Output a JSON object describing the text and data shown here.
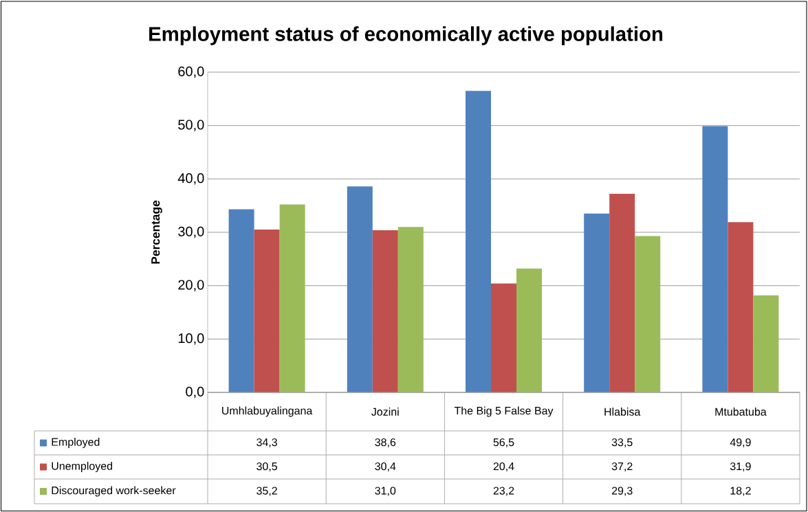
{
  "chart_data": {
    "type": "bar",
    "title": "Employment status of economically active population",
    "ylabel": "Percentage",
    "categories": [
      "Umhlabuyalingana",
      "Jozini",
      "The Big 5 False Bay",
      "Hlabisa",
      "Mtubatuba"
    ],
    "series": [
      {
        "name": "Employed",
        "color": "#4f81bd",
        "values": [
          34.3,
          38.6,
          56.5,
          33.5,
          49.9
        ],
        "value_labels": [
          "34,3",
          "38,6",
          "56,5",
          "33,5",
          "49,9"
        ]
      },
      {
        "name": "Unemployed",
        "color": "#c0504d",
        "values": [
          30.5,
          30.4,
          20.4,
          37.2,
          31.9
        ],
        "value_labels": [
          "30,5",
          "30,4",
          "20,4",
          "37,2",
          "31,9"
        ]
      },
      {
        "name": "Discouraged work-seeker",
        "color": "#9bbb59",
        "values": [
          35.2,
          31.0,
          23.2,
          29.3,
          18.2
        ],
        "value_labels": [
          "35,2",
          "31,0",
          "23,2",
          "29,3",
          "18,2"
        ]
      }
    ],
    "ylim": [
      0,
      60
    ],
    "yticks": [
      {
        "value": 0,
        "label": "0,0"
      },
      {
        "value": 10,
        "label": "10,0"
      },
      {
        "value": 20,
        "label": "20,0"
      },
      {
        "value": 30,
        "label": "30,0"
      },
      {
        "value": 40,
        "label": "40,0"
      },
      {
        "value": 50,
        "label": "50,0"
      },
      {
        "value": 60,
        "label": "60,0"
      }
    ],
    "grid": "y",
    "legend": "bottom"
  }
}
